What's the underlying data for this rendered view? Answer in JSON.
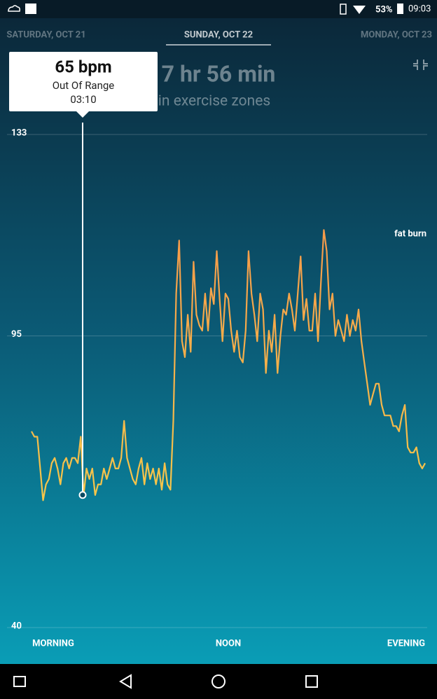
{
  "status_bar": {
    "battery": "53%",
    "time": "09:03"
  },
  "tabs": [
    "SATURDAY, OCT 21",
    "SUNDAY, OCT 22",
    "MONDAY, OCT 23"
  ],
  "header": {
    "duration": "7 hr 56 min",
    "caption": "in exercise zones"
  },
  "tooltip": {
    "value": 65,
    "label": "65 bpm",
    "zone": "Out Of Range",
    "time": "03:10"
  },
  "chart_data": {
    "type": "line",
    "x_labels": [
      "MORNING",
      "NOON",
      "EVENING"
    ],
    "zone_label": "fat burn",
    "ylim": [
      40,
      133
    ],
    "yticks": [
      40,
      95,
      133
    ],
    "grid": true,
    "colors": [
      "#f59a4a",
      "#f7c84a"
    ],
    "values": [
      77,
      76,
      76,
      70,
      64,
      67,
      68,
      71,
      72,
      70,
      67,
      71,
      72,
      70,
      72,
      72,
      71,
      76,
      65,
      70,
      68,
      70,
      65,
      67,
      67,
      70,
      68,
      70,
      72,
      70,
      70,
      72,
      79,
      72,
      70,
      68,
      67,
      70,
      72,
      67,
      71,
      68,
      70,
      67,
      70,
      66,
      71,
      67,
      66,
      79,
      103,
      113,
      94,
      91,
      99,
      92,
      109,
      99,
      97,
      96,
      103,
      96,
      104,
      101,
      111,
      102,
      94,
      103,
      102,
      96,
      92,
      96,
      91,
      90,
      96,
      111,
      103,
      99,
      94,
      103,
      100,
      88,
      96,
      92,
      99,
      88,
      95,
      100,
      99,
      103,
      100,
      96,
      103,
      110,
      98,
      102,
      96,
      96,
      103,
      94,
      105,
      115,
      111,
      100,
      103,
      95,
      98,
      96,
      94,
      99,
      95,
      98,
      96,
      100,
      94,
      90,
      86,
      82,
      84,
      86,
      86,
      82,
      80,
      80,
      80,
      78,
      78,
      77,
      80,
      82,
      74,
      73,
      73,
      74,
      71,
      70,
      71
    ]
  }
}
